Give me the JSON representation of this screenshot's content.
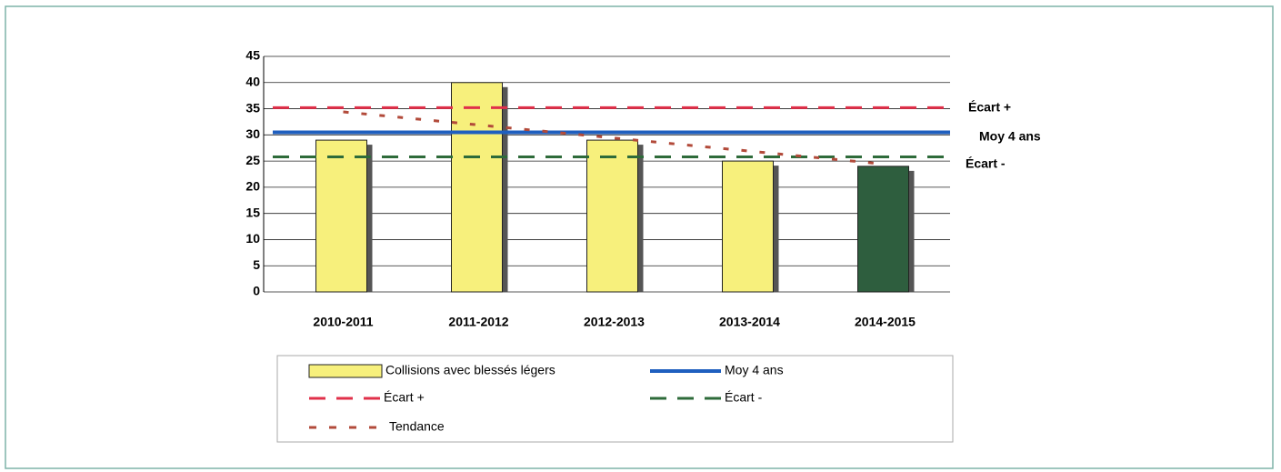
{
  "chart_data": {
    "type": "bar",
    "categories": [
      "2010-2011",
      "2011-2012",
      "2012-2013",
      "2013-2014",
      "2014-2015"
    ],
    "series": [
      {
        "name": "Collisions avec blessés légers",
        "color": "#f7f07c",
        "colors": [
          "#f7f07c",
          "#f7f07c",
          "#f7f07c",
          "#f7f07c",
          "#2e5e3e"
        ],
        "values": [
          29,
          40,
          29,
          25,
          24
        ]
      }
    ],
    "reference_lines": [
      {
        "name": "Moy 4 ans",
        "value": 30.5,
        "color": "#1f5fbf",
        "style": "solid"
      },
      {
        "name": "Écart +",
        "value": 35.2,
        "color": "#e0304a",
        "style": "dashed"
      },
      {
        "name": "Écart -",
        "value": 25.8,
        "color": "#2e6b3a",
        "style": "dashed"
      }
    ],
    "trend": {
      "name": "Tendance",
      "color": "#b24a3a",
      "values": [
        34.4,
        31.9,
        29.4,
        26.9,
        24.4
      ]
    },
    "ylim": [
      0,
      45
    ],
    "yticks": [
      0,
      5,
      10,
      15,
      20,
      25,
      30,
      35,
      40,
      45
    ],
    "grid": true
  }
}
